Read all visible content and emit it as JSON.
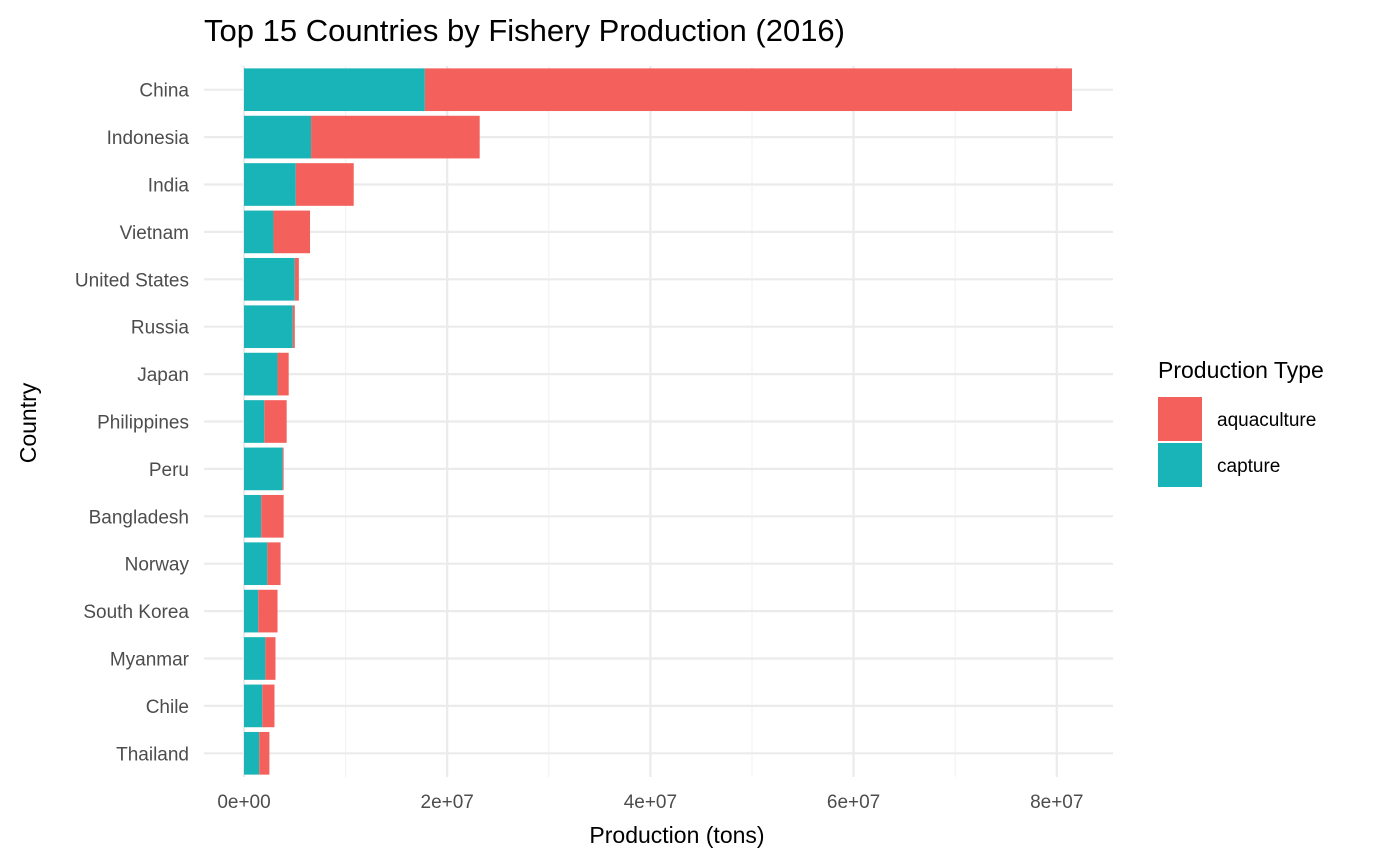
{
  "chart_data": {
    "type": "bar",
    "orientation": "horizontal",
    "stacked": true,
    "title": "Top 15 Countries by Fishery Production (2016)",
    "xlabel": "Production (tons)",
    "ylabel": "Country",
    "xlim": [
      0,
      85000000
    ],
    "x_ticks": [
      0,
      20000000,
      40000000,
      60000000,
      80000000
    ],
    "x_tick_labels": [
      "0e+00",
      "2e+07",
      "4e+07",
      "6e+07",
      "8e+07"
    ],
    "grid": true,
    "legend": {
      "title": "Production Type",
      "position": "right",
      "entries": [
        "aquaculture",
        "capture"
      ]
    },
    "categories": [
      "China",
      "Indonesia",
      "India",
      "Vietnam",
      "United States",
      "Russia",
      "Japan",
      "Philippines",
      "Peru",
      "Bangladesh",
      "Norway",
      "South Korea",
      "Myanmar",
      "Chile",
      "Thailand"
    ],
    "series": [
      {
        "name": "capture",
        "color": "#19B4B8",
        "values": [
          17800000,
          6600000,
          5100000,
          2900000,
          5000000,
          4800000,
          3300000,
          2000000,
          3800000,
          1700000,
          2300000,
          1400000,
          2100000,
          1800000,
          1500000
        ]
      },
      {
        "name": "aquaculture",
        "color": "#F4615C",
        "values": [
          63700000,
          16600000,
          5700000,
          3600000,
          400000,
          200000,
          1100000,
          2200000,
          100000,
          2200000,
          1300000,
          1900000,
          1000000,
          1200000,
          1000000
        ]
      }
    ]
  }
}
